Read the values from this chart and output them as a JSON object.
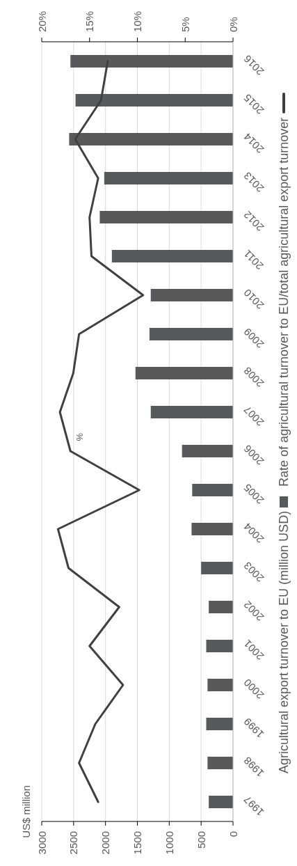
{
  "chart_data": {
    "type": "bar",
    "orientation": "horizontal",
    "categories": [
      "2016",
      "2015",
      "2014",
      "2013",
      "2012",
      "2011",
      "2010",
      "2009",
      "2008",
      "2007",
      "2006",
      "2005",
      "2004",
      "2003",
      "2002",
      "2001",
      "2000",
      "1999",
      "1998",
      "1997"
    ],
    "series": [
      {
        "name": "Agricultural export turnover to EU (million USD)",
        "color": "#58595b",
        "values": [
          2550,
          2470,
          2570,
          2020,
          2090,
          1900,
          1290,
          1310,
          1530,
          1290,
          800,
          640,
          650,
          500,
          380,
          420,
          400,
          420,
          400,
          380
        ]
      },
      {
        "name": "Rate of agricultural turnover to EU/total agricultural export turnover",
        "type": "line",
        "axis": "x2",
        "color": "#404040",
        "values": [
          13.1,
          13.8,
          16.5,
          14.1,
          15.0,
          14.8,
          9.4,
          16.1,
          16.7,
          18.1,
          17.0,
          9.8,
          18.3,
          17.2,
          11.9,
          15.0,
          11.5,
          14.4,
          16.1,
          14.1
        ]
      }
    ],
    "xlim": [
      3000,
      0
    ],
    "xticks": [
      0,
      500,
      1000,
      1500,
      2000,
      2500,
      3000
    ],
    "x2lim": [
      20,
      0
    ],
    "x2ticks": [
      {
        "value": 0,
        "label": "0%"
      },
      {
        "value": 5,
        "label": "5%"
      },
      {
        "value": 10,
        "label": "10%"
      },
      {
        "value": 15,
        "label": "15%"
      },
      {
        "value": 20,
        "label": "20%"
      }
    ],
    "annotations": [
      "US$ million",
      "%"
    ],
    "grid": "x",
    "legend": "right",
    "marker": "none",
    "line_style": "solid"
  }
}
